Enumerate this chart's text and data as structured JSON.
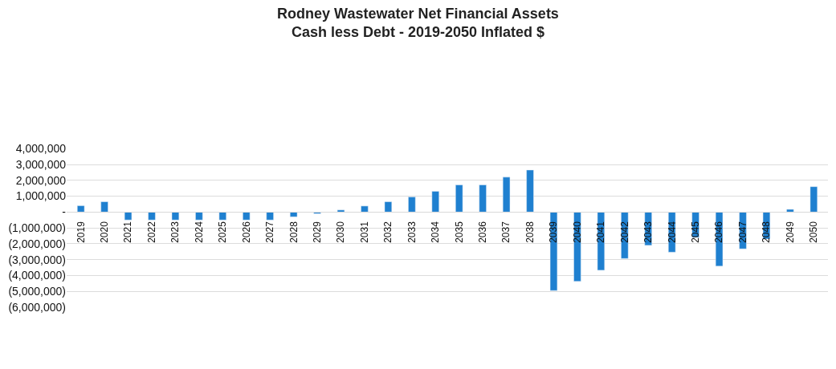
{
  "chart_data": {
    "type": "bar",
    "title": "Rodney Wastewater Net Financial Assets",
    "subtitle": "Cash less Debt - 2019-2050 Inflated $",
    "categories": [
      "2019",
      "2020",
      "2021",
      "2022",
      "2023",
      "2024",
      "2025",
      "2026",
      "2027",
      "2028",
      "2029",
      "2030",
      "2031",
      "2032",
      "2033",
      "2034",
      "2035",
      "2036",
      "2037",
      "2038",
      "2039",
      "2040",
      "2041",
      "2042",
      "2043",
      "2044",
      "2045",
      "2046",
      "2047",
      "2048",
      "2049",
      "2050"
    ],
    "values": [
      400000,
      650000,
      -500000,
      -500000,
      -500000,
      -500000,
      -500000,
      -500000,
      -500000,
      -300000,
      -100000,
      130000,
      380000,
      650000,
      950000,
      1310000,
      1710000,
      1710000,
      2200000,
      2650000,
      -4950000,
      -4370000,
      -3670000,
      -2930000,
      -2100000,
      -2530000,
      -1600000,
      -3410000,
      -2320000,
      -1700000,
      170000,
      1600000
    ],
    "color": "#1f80d0",
    "ylim": [
      -6000000,
      4000000
    ],
    "yticks": [
      {
        "value": 4000000,
        "label": "4,000,000"
      },
      {
        "value": 3000000,
        "label": "3,000,000"
      },
      {
        "value": 2000000,
        "label": "2,000,000"
      },
      {
        "value": 1000000,
        "label": "1,000,000"
      },
      {
        "value": 0,
        "label": "-"
      },
      {
        "value": -1000000,
        "label": "(1,000,000)"
      },
      {
        "value": -2000000,
        "label": "(2,000,000)"
      },
      {
        "value": -3000000,
        "label": "(3,000,000)"
      },
      {
        "value": -4000000,
        "label": "(4,000,000)"
      },
      {
        "value": -5000000,
        "label": "(5,000,000)"
      },
      {
        "value": -6000000,
        "label": "(6,000,000)"
      }
    ],
    "grid": "y"
  }
}
